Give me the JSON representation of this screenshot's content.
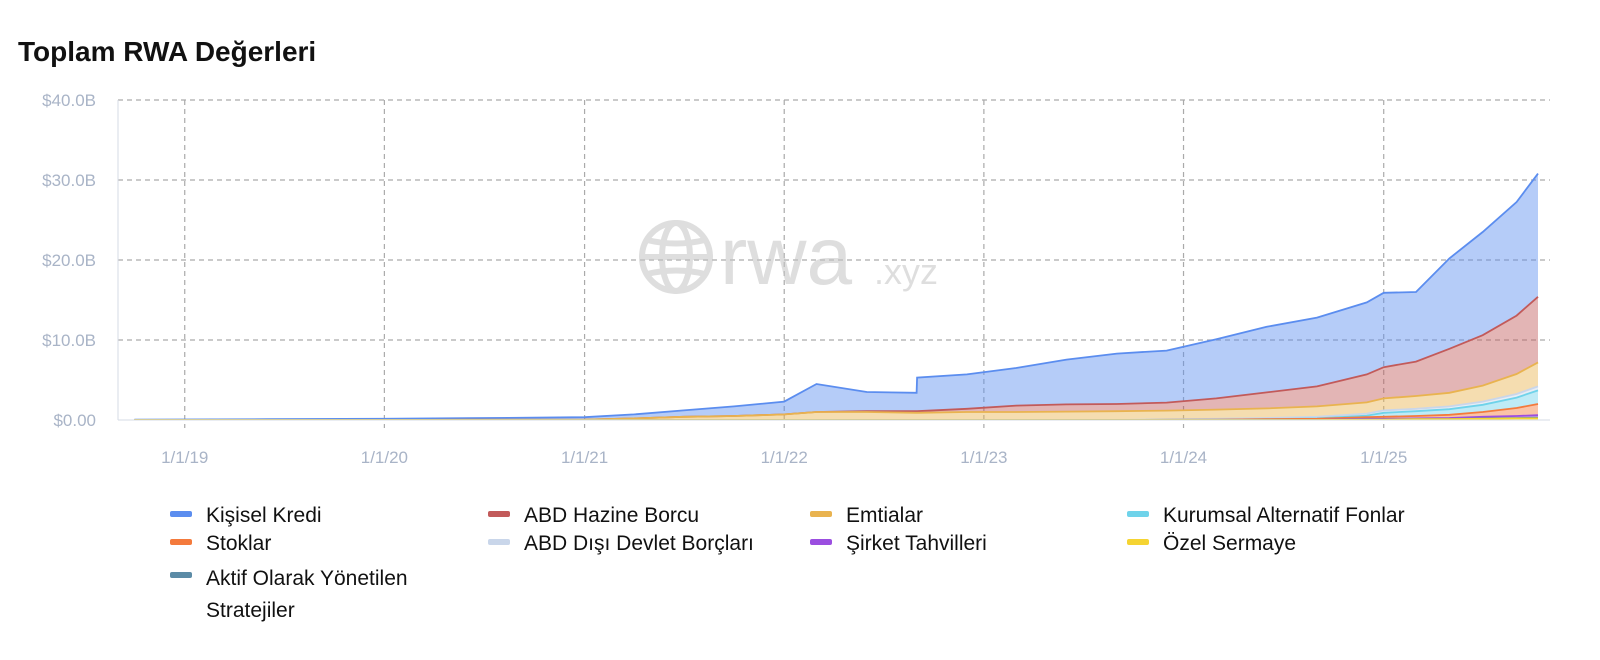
{
  "title": "Toplam RWA Değerleri",
  "watermark": {
    "brand": "rwa",
    "suffix": ".xyz",
    "icon": "globe-icon"
  },
  "colors": {
    "grid": "#aaaaaa",
    "axis_text": "#a9b4c7"
  },
  "chart_data": {
    "type": "area",
    "stacked": true,
    "x_type": "date",
    "x_ticks": [
      "1/1/19",
      "1/1/20",
      "1/1/21",
      "1/1/22",
      "1/1/23",
      "1/1/24",
      "1/1/25"
    ],
    "x_tick_dates": [
      "2019-01-01",
      "2020-01-01",
      "2021-01-01",
      "2022-01-01",
      "2023-01-01",
      "2024-01-01",
      "2025-01-01"
    ],
    "xlim": [
      "2018-09-01",
      "2025-11-01"
    ],
    "y_ticks": [
      "$0.00",
      "$10.0B",
      "$20.0B",
      "$30.0B",
      "$40.0B"
    ],
    "ylim": [
      0,
      40
    ],
    "y_unit": "B USD",
    "grid": true,
    "legend_position": "bottom",
    "x": [
      "2018-10-01",
      "2019-06-01",
      "2020-01-01",
      "2020-06-01",
      "2021-01-01",
      "2021-04-01",
      "2021-07-01",
      "2021-10-01",
      "2022-01-01",
      "2022-03-01",
      "2022-06-01",
      "2022-08-31",
      "2022-09-01",
      "2022-12-01",
      "2023-03-01",
      "2023-06-01",
      "2023-09-01",
      "2023-12-01",
      "2024-03-01",
      "2024-06-01",
      "2024-09-01",
      "2024-12-01",
      "2025-01-01",
      "2025-03-01",
      "2025-05-01",
      "2025-07-01",
      "2025-09-01",
      "2025-10-10"
    ],
    "series": [
      {
        "name": "Özel Sermaye",
        "color": "#f5d432",
        "values": [
          0,
          0,
          0,
          0,
          0,
          0,
          0,
          0,
          0,
          0,
          0,
          0,
          0,
          0,
          0,
          0,
          0,
          0,
          0,
          0,
          0,
          0.05,
          0.05,
          0.1,
          0.1,
          0.15,
          0.2,
          0.2
        ]
      },
      {
        "name": "Aktif Olarak Yönetilen Stratejiler",
        "color": "#5b8ba6",
        "values": [
          0,
          0,
          0,
          0,
          0,
          0,
          0,
          0,
          0,
          0,
          0,
          0,
          0,
          0,
          0,
          0,
          0,
          0,
          0,
          0,
          0,
          0,
          0,
          0,
          0,
          0.05,
          0.05,
          0.1
        ]
      },
      {
        "name": "Şirket Tahvilleri",
        "color": "#9b4ee0",
        "values": [
          0,
          0,
          0,
          0,
          0,
          0,
          0,
          0,
          0,
          0,
          0,
          0,
          0,
          0,
          0,
          0,
          0,
          0,
          0,
          0,
          0,
          0.1,
          0.1,
          0.1,
          0.15,
          0.2,
          0.25,
          0.3
        ]
      },
      {
        "name": "Stoklar",
        "color": "#f47a3c",
        "values": [
          0,
          0,
          0,
          0,
          0,
          0,
          0,
          0,
          0,
          0,
          0,
          0,
          0,
          0,
          0,
          0,
          0,
          0.02,
          0.05,
          0.1,
          0.15,
          0.2,
          0.25,
          0.3,
          0.4,
          0.6,
          1.0,
          1.4
        ]
      },
      {
        "name": "Kurumsal Alternatif Fonlar",
        "color": "#6fd3ea",
        "values": [
          0,
          0,
          0,
          0,
          0,
          0,
          0,
          0,
          0,
          0,
          0,
          0,
          0,
          0,
          0,
          0,
          0,
          0,
          0,
          0,
          0.05,
          0.2,
          0.5,
          0.6,
          0.7,
          0.9,
          1.3,
          1.7
        ]
      },
      {
        "name": "ABD Dışı Devlet Borçları",
        "color": "#c9d6ea",
        "values": [
          0,
          0,
          0,
          0,
          0,
          0,
          0,
          0,
          0,
          0,
          0,
          0,
          0,
          0,
          0,
          0,
          0,
          0.05,
          0.1,
          0.15,
          0.2,
          0.25,
          0.3,
          0.3,
          0.35,
          0.4,
          0.45,
          0.5
        ]
      },
      {
        "name": "Emtialar",
        "color": "#e9b34f",
        "values": [
          0,
          0,
          0,
          0.02,
          0.05,
          0.2,
          0.4,
          0.5,
          0.7,
          1.0,
          1.0,
          0.9,
          0.9,
          1.0,
          1.0,
          1.05,
          1.1,
          1.1,
          1.15,
          1.2,
          1.3,
          1.4,
          1.5,
          1.6,
          1.7,
          2.0,
          2.5,
          3.0
        ]
      },
      {
        "name": "ABD Hazine Borcu",
        "color": "#c25a5a",
        "values": [
          0,
          0,
          0,
          0,
          0,
          0,
          0,
          0,
          0,
          0,
          0.1,
          0.2,
          0.2,
          0.4,
          0.8,
          0.9,
          0.9,
          1.0,
          1.4,
          2.0,
          2.5,
          3.5,
          3.9,
          4.3,
          5.5,
          6.3,
          7.3,
          8.2
        ]
      },
      {
        "name": "Kişisel Kredi",
        "color": "#5b8def",
        "values": [
          0.05,
          0.1,
          0.15,
          0.2,
          0.3,
          0.5,
          0.8,
          1.2,
          1.6,
          3.5,
          2.4,
          2.3,
          4.2,
          4.3,
          4.7,
          5.6,
          6.3,
          6.5,
          7.4,
          8.2,
          8.6,
          9.0,
          9.3,
          8.7,
          11.3,
          12.9,
          14.2,
          15.4
        ]
      }
    ]
  },
  "legend": [
    {
      "label": "Kişisel Kredi",
      "color": "#5b8def"
    },
    {
      "label": "ABD Hazine Borcu",
      "color": "#c25a5a"
    },
    {
      "label": "Emtialar",
      "color": "#e9b34f"
    },
    {
      "label": "Kurumsal Alternatif Fonlar",
      "color": "#6fd3ea"
    },
    {
      "label": "Stoklar",
      "color": "#f47a3c"
    },
    {
      "label": "ABD Dışı Devlet Borçları",
      "color": "#c9d6ea"
    },
    {
      "label": "Şirket Tahvilleri",
      "color": "#9b4ee0"
    },
    {
      "label": "Özel Sermaye",
      "color": "#f5d432"
    },
    {
      "label": "Aktif Olarak Yönetilen Stratejiler",
      "color": "#5b8ba6"
    }
  ]
}
